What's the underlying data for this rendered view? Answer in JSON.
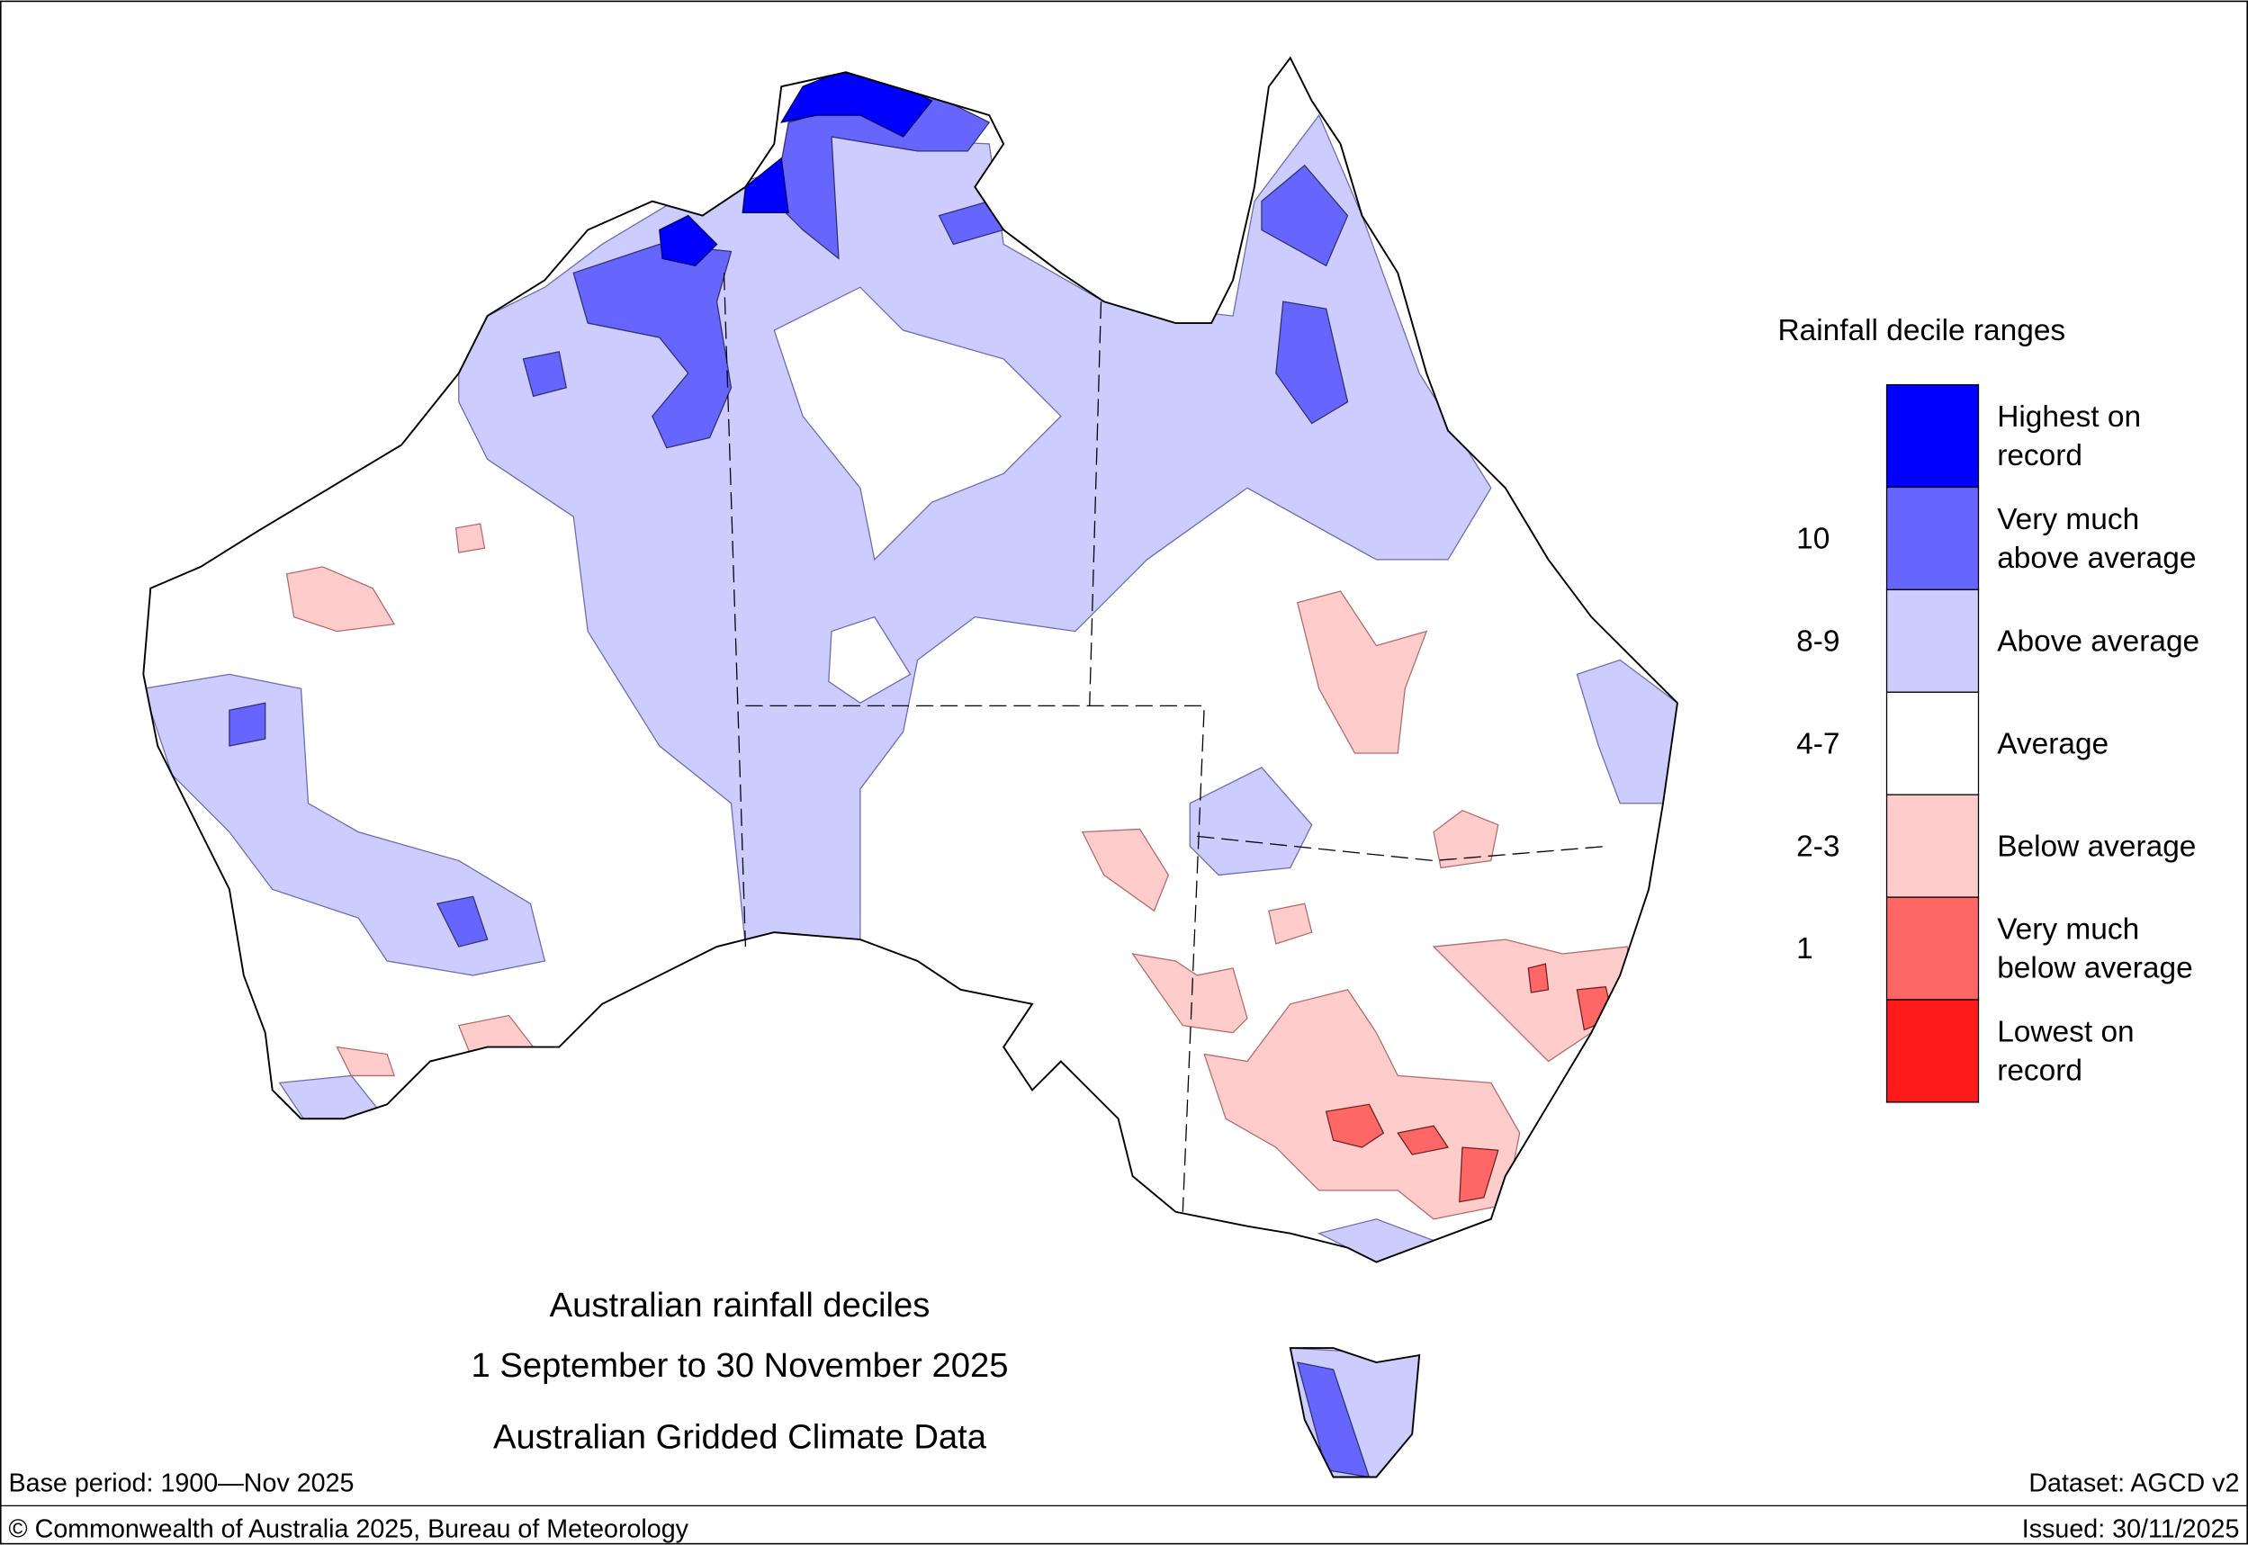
{
  "map": {
    "title": [
      "Australian rainfall deciles",
      "1 September to 30 November 2025",
      "Australian Gridded Climate Data"
    ],
    "legend": {
      "title": "Rainfall decile ranges",
      "entries": [
        {
          "label": [
            "Highest on",
            "record"
          ],
          "color": "#0000ff"
        },
        {
          "label": [
            "Very much",
            "above average"
          ],
          "range": "10",
          "color": "#6666ff"
        },
        {
          "label": [
            "Above average"
          ],
          "range": "8-9",
          "color": "#ccccff"
        },
        {
          "label": [
            "Average"
          ],
          "range": "4-7",
          "color": "#ffffff"
        },
        {
          "label": [
            "Below average"
          ],
          "range": "2-3",
          "color": "#ffcccc"
        },
        {
          "label": [
            "Very much",
            "below average"
          ],
          "range": "1",
          "color": "#ff6666"
        },
        {
          "label": [
            "Lowest on",
            "record"
          ],
          "color": "#ff1a1a"
        }
      ]
    },
    "base_period": "Base period: 1900—Nov 2025",
    "dataset": "Dataset: AGCD v2",
    "copyright": "© Commonwealth of Australia 2025, Bureau of Meteorology",
    "issued": "Issued: 30/11/2025"
  }
}
